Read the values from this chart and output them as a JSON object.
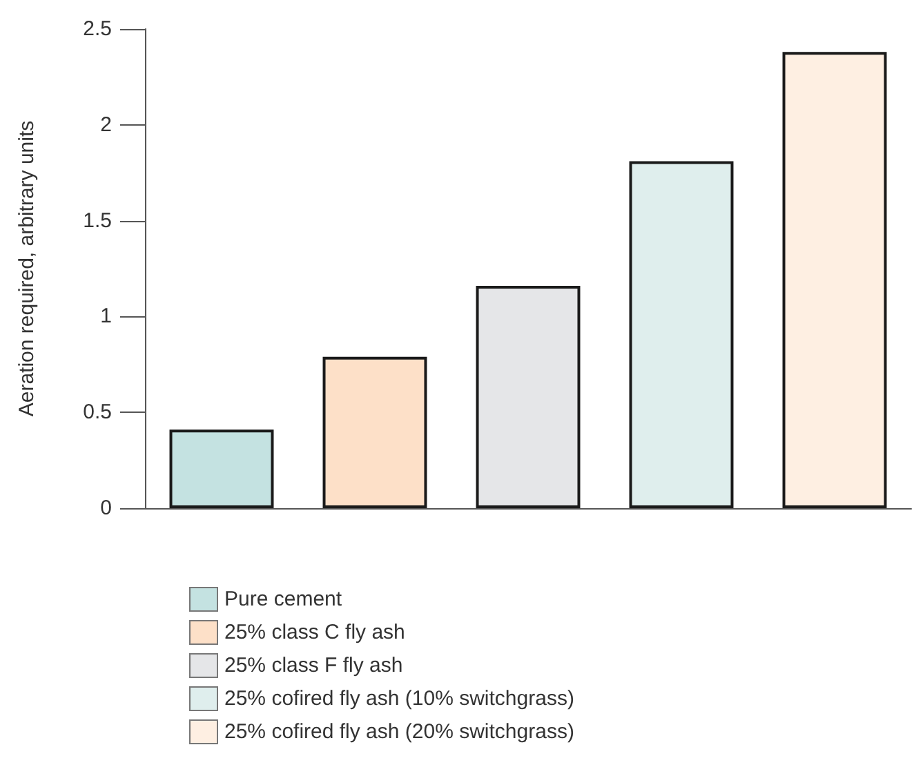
{
  "chart_data": {
    "type": "bar",
    "ylabel": "Aeration required, arbitrary units",
    "categories": [
      null,
      null,
      null,
      null,
      null
    ],
    "stacked": true,
    "series": [
      {
        "name": "Pure cement",
        "color": "#c4e2e1",
        "values": [
          0.41,
          null,
          null,
          null,
          null
        ]
      },
      {
        "name": "25% class C fly ash",
        "color": "#fde0c8",
        "values": [
          null,
          0.79,
          null,
          null,
          null
        ]
      },
      {
        "name": "25% class F fly ash",
        "color": "#e5e6e8",
        "values": [
          null,
          null,
          1.16,
          null,
          null
        ]
      },
      {
        "name": "25% cofired fly ash (10% switchgrass)",
        "color": "#dfeeed",
        "values": [
          null,
          null,
          null,
          1.81,
          null
        ]
      },
      {
        "name": "25% cofired fly ash (20% switchgrass)",
        "color": "#feefe2",
        "values": [
          null,
          null,
          null,
          null,
          2.38
        ]
      }
    ],
    "ylim": [
      0,
      2.5
    ],
    "yticks": [
      0,
      0.5,
      1,
      1.5,
      2,
      2.5
    ],
    "grid": false,
    "legend": "bottom"
  }
}
